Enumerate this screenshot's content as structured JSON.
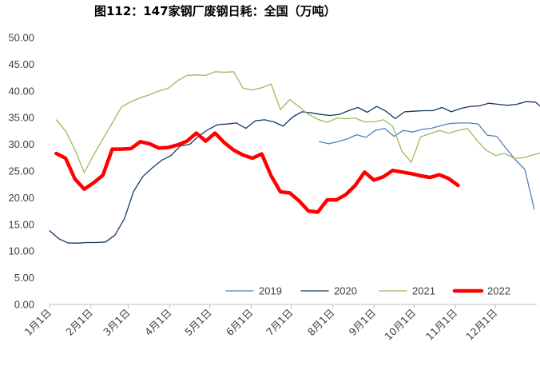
{
  "chart_data": {
    "type": "line",
    "title": "图112：147家钢厂废钢日耗：全国（万吨）",
    "xlabel": "",
    "ylabel": "",
    "ylim": [
      0,
      50
    ],
    "yticks": [
      "0.00",
      "5.00",
      "10.00",
      "15.00",
      "20.00",
      "25.00",
      "30.00",
      "35.00",
      "40.00",
      "45.00",
      "50.00"
    ],
    "xlim": [
      1,
      366
    ],
    "xticks": [
      {
        "label": "1月1日",
        "day": 1
      },
      {
        "label": "2月1日",
        "day": 32
      },
      {
        "label": "3月1日",
        "day": 60
      },
      {
        "label": "4月1日",
        "day": 91
      },
      {
        "label": "5月1日",
        "day": 121
      },
      {
        "label": "6月1日",
        "day": 152
      },
      {
        "label": "7月1日",
        "day": 182
      },
      {
        "label": "8月1日",
        "day": 213
      },
      {
        "label": "9月1日",
        "day": 244
      },
      {
        "label": "10月1日",
        "day": 274
      },
      {
        "label": "11月1日",
        "day": 305
      },
      {
        "label": "12月1日",
        "day": 335
      }
    ],
    "grid": false,
    "legend_position": "bottom",
    "series": [
      {
        "name": "2019",
        "color": "#4F81BD",
        "width": 1.3,
        "points": [
          [
            203,
            30.5
          ],
          [
            210,
            30.1
          ],
          [
            217,
            30.5
          ],
          [
            224,
            31.0
          ],
          [
            231,
            31.8
          ],
          [
            238,
            31.3
          ],
          [
            245,
            32.6
          ],
          [
            252,
            33.0
          ],
          [
            259,
            31.5
          ],
          [
            266,
            32.6
          ],
          [
            273,
            32.3
          ],
          [
            280,
            32.8
          ],
          [
            287,
            33.0
          ],
          [
            294,
            33.5
          ],
          [
            301,
            33.9
          ],
          [
            308,
            34.0
          ],
          [
            315,
            34.0
          ],
          [
            322,
            33.8
          ],
          [
            329,
            31.7
          ],
          [
            336,
            31.5
          ],
          [
            343,
            29.2
          ],
          [
            350,
            27.1
          ],
          [
            357,
            25.3
          ],
          [
            364,
            17.9
          ]
        ]
      },
      {
        "name": "2020",
        "color": "#17375E",
        "width": 1.3,
        "points": [
          [
            1,
            13.8
          ],
          [
            8,
            12.3
          ],
          [
            15,
            11.5
          ],
          [
            22,
            11.5
          ],
          [
            29,
            11.6
          ],
          [
            36,
            11.6
          ],
          [
            43,
            11.7
          ],
          [
            50,
            13.0
          ],
          [
            57,
            16.0
          ],
          [
            64,
            21.2
          ],
          [
            71,
            24.0
          ],
          [
            78,
            25.6
          ],
          [
            85,
            27.0
          ],
          [
            92,
            27.9
          ],
          [
            99,
            29.7
          ],
          [
            106,
            30.0
          ],
          [
            113,
            31.6
          ],
          [
            120,
            32.8
          ],
          [
            127,
            33.7
          ],
          [
            134,
            33.8
          ],
          [
            141,
            34.0
          ],
          [
            148,
            33.0
          ],
          [
            155,
            34.4
          ],
          [
            162,
            34.6
          ],
          [
            169,
            34.2
          ],
          [
            176,
            33.4
          ],
          [
            183,
            35.1
          ],
          [
            190,
            36.1
          ],
          [
            197,
            35.9
          ],
          [
            204,
            35.6
          ],
          [
            211,
            35.4
          ],
          [
            218,
            35.6
          ],
          [
            225,
            36.3
          ],
          [
            232,
            36.9
          ],
          [
            239,
            36.0
          ],
          [
            246,
            37.1
          ],
          [
            253,
            36.2
          ],
          [
            260,
            34.8
          ],
          [
            267,
            36.1
          ],
          [
            274,
            36.2
          ],
          [
            281,
            36.3
          ],
          [
            288,
            36.3
          ],
          [
            295,
            36.9
          ],
          [
            302,
            36.1
          ],
          [
            309,
            36.7
          ],
          [
            316,
            37.1
          ],
          [
            323,
            37.2
          ],
          [
            330,
            37.7
          ],
          [
            337,
            37.5
          ],
          [
            344,
            37.3
          ],
          [
            351,
            37.5
          ],
          [
            358,
            38.0
          ],
          [
            365,
            37.9
          ],
          [
            372,
            36.4
          ]
        ]
      },
      {
        "name": "2021",
        "color": "#9BBB59",
        "width": 1.3,
        "points": [
          [
            6,
            34.6
          ],
          [
            13,
            32.5
          ],
          [
            20,
            29.0
          ],
          [
            27,
            24.7
          ],
          [
            34,
            28.0
          ],
          [
            41,
            31.0
          ],
          [
            48,
            34.0
          ],
          [
            55,
            37.0
          ],
          [
            62,
            38.0
          ],
          [
            69,
            38.7
          ],
          [
            76,
            39.3
          ],
          [
            83,
            40.0
          ],
          [
            90,
            40.5
          ],
          [
            97,
            41.9
          ],
          [
            104,
            42.9
          ],
          [
            111,
            43.0
          ],
          [
            118,
            42.9
          ],
          [
            125,
            43.6
          ],
          [
            132,
            43.5
          ],
          [
            139,
            43.6
          ],
          [
            146,
            40.5
          ],
          [
            153,
            40.2
          ],
          [
            160,
            40.6
          ],
          [
            167,
            41.3
          ],
          [
            174,
            36.5
          ],
          [
            181,
            38.4
          ],
          [
            188,
            37.0
          ],
          [
            195,
            35.6
          ],
          [
            202,
            34.7
          ],
          [
            209,
            34.1
          ],
          [
            216,
            34.9
          ],
          [
            223,
            34.8
          ],
          [
            230,
            34.9
          ],
          [
            237,
            34.2
          ],
          [
            244,
            34.2
          ],
          [
            251,
            34.6
          ],
          [
            258,
            33.4
          ],
          [
            265,
            28.7
          ],
          [
            272,
            26.6
          ],
          [
            279,
            31.4
          ],
          [
            286,
            32.0
          ],
          [
            293,
            32.6
          ],
          [
            300,
            32.1
          ],
          [
            307,
            32.6
          ],
          [
            314,
            33.0
          ],
          [
            321,
            30.8
          ],
          [
            328,
            28.9
          ],
          [
            335,
            27.9
          ],
          [
            342,
            28.3
          ],
          [
            349,
            27.4
          ],
          [
            356,
            27.5
          ],
          [
            363,
            28.0
          ],
          [
            370,
            28.5
          ],
          [
            377,
            28.5
          ]
        ]
      },
      {
        "name": "2022",
        "color": "#FF0000",
        "width": 4.5,
        "points": [
          [
            6,
            28.3
          ],
          [
            13,
            27.4
          ],
          [
            20,
            23.5
          ],
          [
            27,
            21.6
          ],
          [
            34,
            22.8
          ],
          [
            41,
            24.2
          ],
          [
            48,
            29.1
          ],
          [
            55,
            29.1
          ],
          [
            62,
            29.2
          ],
          [
            69,
            30.5
          ],
          [
            76,
            30.1
          ],
          [
            83,
            29.3
          ],
          [
            90,
            29.4
          ],
          [
            97,
            29.9
          ],
          [
            104,
            30.6
          ],
          [
            111,
            32.1
          ],
          [
            118,
            30.6
          ],
          [
            125,
            32.1
          ],
          [
            132,
            30.3
          ],
          [
            139,
            28.9
          ],
          [
            146,
            28.0
          ],
          [
            153,
            27.4
          ],
          [
            160,
            28.2
          ],
          [
            167,
            24.1
          ],
          [
            174,
            21.1
          ],
          [
            181,
            20.9
          ],
          [
            188,
            19.4
          ],
          [
            195,
            17.5
          ],
          [
            202,
            17.3
          ],
          [
            209,
            19.6
          ],
          [
            216,
            19.6
          ],
          [
            223,
            20.6
          ],
          [
            230,
            22.3
          ],
          [
            237,
            24.8
          ],
          [
            244,
            23.3
          ],
          [
            251,
            23.9
          ],
          [
            258,
            25.1
          ],
          [
            265,
            24.8
          ],
          [
            272,
            24.5
          ],
          [
            279,
            24.1
          ],
          [
            286,
            23.8
          ],
          [
            293,
            24.3
          ],
          [
            300,
            23.6
          ],
          [
            307,
            22.3
          ]
        ]
      }
    ]
  }
}
